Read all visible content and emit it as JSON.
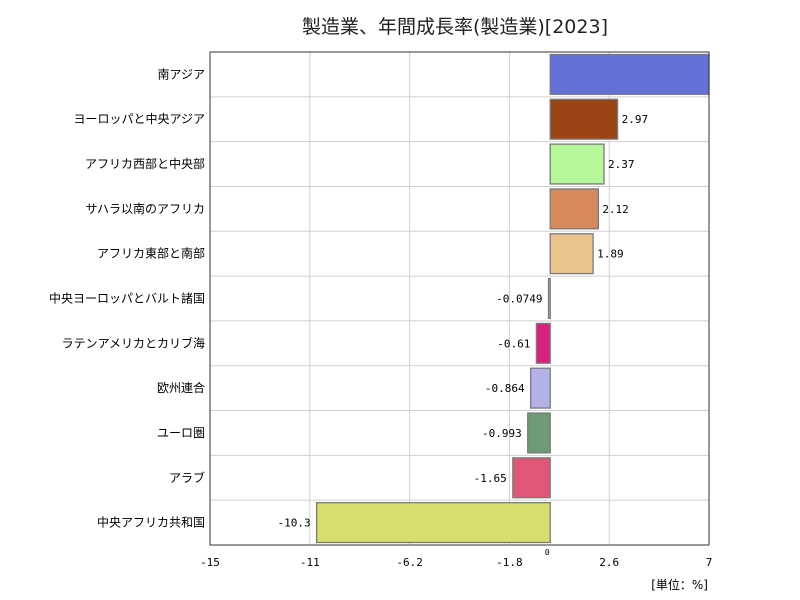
{
  "chart_data": {
    "type": "bar",
    "orientation": "horizontal",
    "title": "製造業、年間成長率(製造業)[2023]",
    "unit_label": "[単位：%]",
    "xlim": [
      -15,
      7
    ],
    "x_ticks": [
      "-15",
      "-11",
      "-6.2",
      "-1.8",
      "2.6",
      "7"
    ],
    "x_tick_values": [
      -15,
      -10.6,
      -6.2,
      -1.8,
      2.6,
      7
    ],
    "zero_label": "0",
    "grid": true,
    "categories": [
      "南アジア",
      "ヨーロッパと中央アジア",
      "アフリカ西部と中央部",
      "サハラ以南のアフリカ",
      "アフリカ東部と南部",
      "中央ヨーロッパとバルト諸国",
      "ラテンアメリカとカリブ海",
      "欧州連合",
      "ユーロ圏",
      "アラブ",
      "中央アフリカ共和国"
    ],
    "values": [
      7.0,
      2.97,
      2.37,
      2.12,
      1.89,
      -0.0749,
      -0.61,
      -0.864,
      -0.993,
      -1.65,
      -10.3
    ],
    "value_labels": [
      "",
      "2.97",
      "2.37",
      "2.12",
      "1.89",
      "-0.0749",
      "-0.61",
      "-0.864",
      "-0.993",
      "-1.65",
      "-10.3"
    ],
    "colors": [
      "#6470d8",
      "#9a4514",
      "#b6f79a",
      "#d6895a",
      "#ecc58e",
      "#c8c8c8",
      "#d8207e",
      "#b2b2e8",
      "#6e9a76",
      "#de5876",
      "#d8de6c"
    ]
  }
}
